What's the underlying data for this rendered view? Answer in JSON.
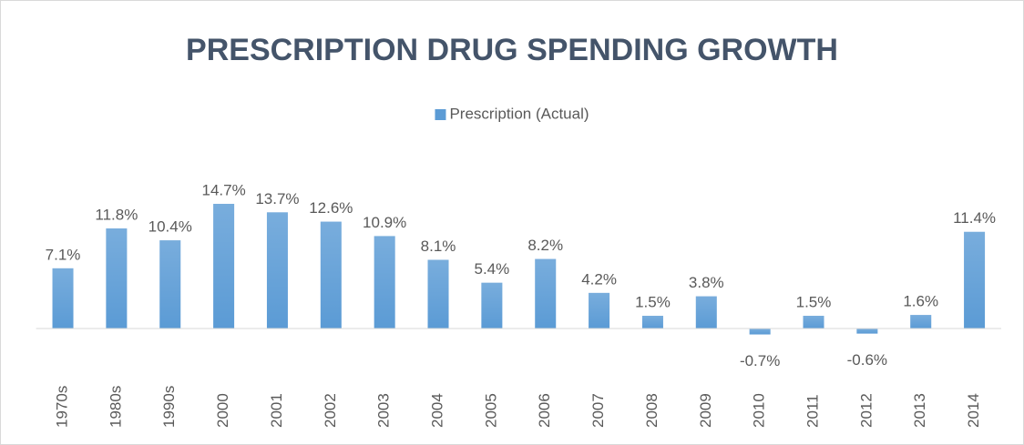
{
  "chart_data": {
    "type": "bar",
    "title": "PRESCRIPTION DRUG SPENDING GROWTH",
    "categories": [
      "1970s",
      "1980s",
      "1990s",
      "2000",
      "2001",
      "2002",
      "2003",
      "2004",
      "2005",
      "2006",
      "2007",
      "2008",
      "2009",
      "2010",
      "2011",
      "2012",
      "2013",
      "2014"
    ],
    "series": [
      {
        "name": "Prescription (Actual)",
        "color": "#5b9bd5",
        "values": [
          7.1,
          11.8,
          10.4,
          14.7,
          13.7,
          12.6,
          10.9,
          8.1,
          5.4,
          8.2,
          4.2,
          1.5,
          3.8,
          -0.7,
          1.5,
          -0.6,
          1.6,
          11.4
        ],
        "value_labels": [
          "7.1%",
          "11.8%",
          "10.4%",
          "14.7%",
          "13.7%",
          "12.6%",
          "10.9%",
          "8.1%",
          "5.4%",
          "8.2%",
          "4.2%",
          "1.5%",
          "3.8%",
          "-0.7%",
          "1.5%",
          "-0.6%",
          "1.6%",
          "11.4%"
        ]
      }
    ]
  }
}
